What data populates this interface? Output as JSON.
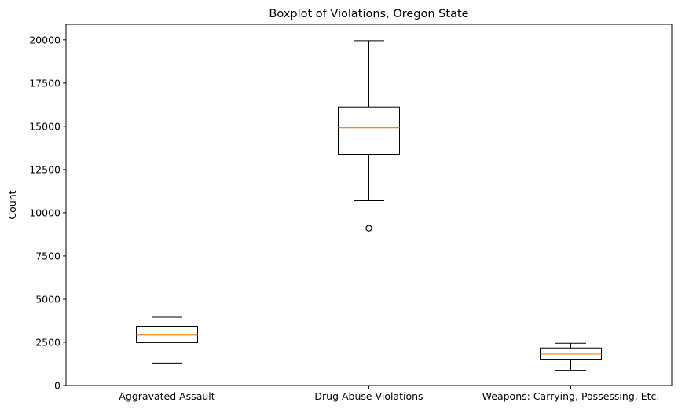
{
  "chart_data": {
    "type": "boxplot",
    "title": "Boxplot of Violations, Oregon State",
    "xlabel": "",
    "ylabel": "Count",
    "ylim": [
      0,
      20900
    ],
    "yticks": [
      0,
      2500,
      5000,
      7500,
      10000,
      12500,
      15000,
      17500,
      20000
    ],
    "grid": false,
    "categories": [
      "Aggravated Assault",
      "Drug Abuse Violations",
      "Weapons: Carrying, Possessing, Etc."
    ],
    "boxes": [
      {
        "category": "Aggravated Assault",
        "whisker_low": 1300,
        "q1": 2480,
        "median": 2920,
        "q3": 3430,
        "whisker_high": 3950,
        "outliers": []
      },
      {
        "category": "Drug Abuse Violations",
        "whisker_low": 10700,
        "q1": 13380,
        "median": 14920,
        "q3": 16120,
        "whisker_high": 19950,
        "outliers": [
          9100
        ]
      },
      {
        "category": "Weapons: Carrying, Possessing, Etc.",
        "whisker_low": 880,
        "q1": 1520,
        "median": 1820,
        "q3": 2170,
        "whisker_high": 2440,
        "outliers": []
      }
    ],
    "colors": {
      "box": "#000000",
      "median": "#ff7f0e"
    }
  }
}
